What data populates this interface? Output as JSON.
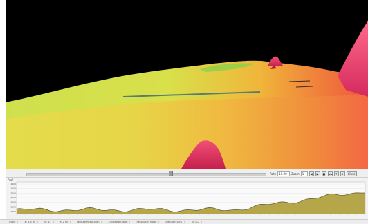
{
  "viewport": {
    "description_colors": {
      "sky": "#000000",
      "shallow": "#d6e04a",
      "mid": "#f0c238",
      "deep": "#f04a3a",
      "peak": "#e8336a"
    }
  },
  "timeline": {
    "speed_label": "Rate",
    "speed_value": "10.00 m",
    "zoom_label": "Zoom",
    "zoom_value": "1",
    "buttons": [
      "◀",
      "▶",
      "■",
      "▶▶",
      "↑",
      "↓"
    ],
    "close_label": "Close"
  },
  "profile": {
    "title": "Prof",
    "y_ticks": [
      "-1000",
      "-1500",
      "-2000",
      "-2500",
      "-3000",
      "-3500",
      "-4000"
    ],
    "fill_color": "#b5a64a",
    "line_color": "#4a4a30"
  },
  "status": {
    "fields": [
      "Scale",
      "X: 1.4 mi",
      "N: 42",
      "Y: 2 mi",
      "Texture Resolution",
      "Z: Exaggeration",
      "Resolution Mode",
      "Altitude: 50%",
      "Tilt: 12"
    ]
  }
}
